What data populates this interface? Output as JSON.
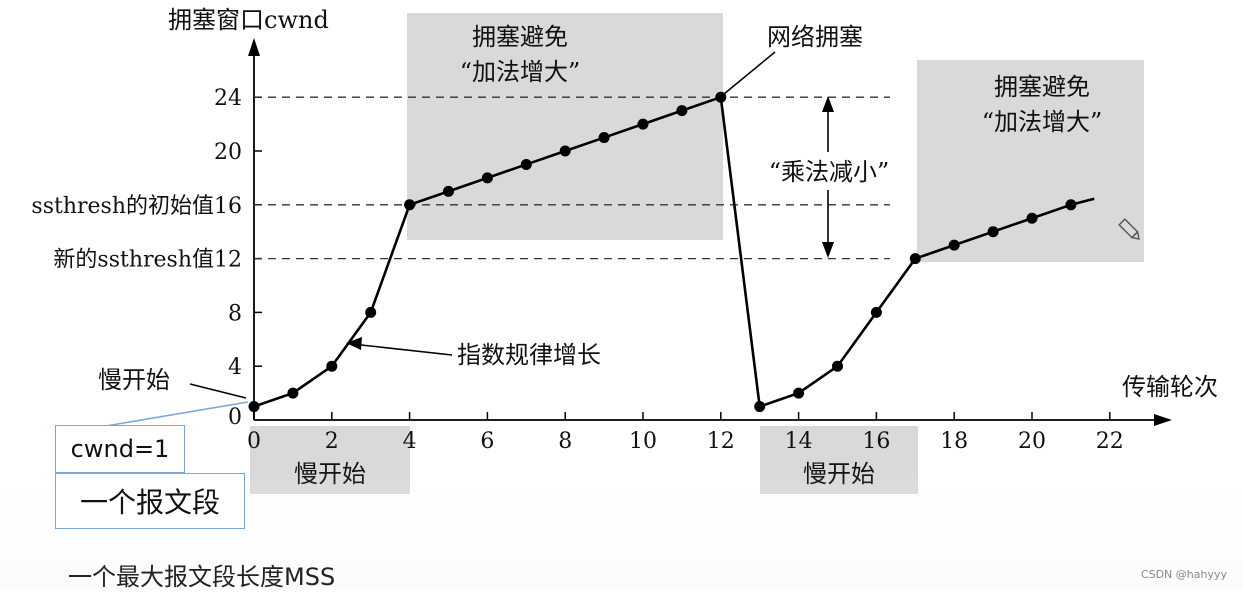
{
  "chart_data": {
    "type": "line",
    "ylabel": "拥塞窗口cwnd",
    "xlabel": "传输轮次",
    "x_ticks": [
      0,
      2,
      4,
      6,
      8,
      10,
      12,
      14,
      16,
      18,
      20,
      22
    ],
    "y_ticks": [
      0,
      4,
      8,
      12,
      16,
      20,
      24
    ],
    "xlim": [
      0,
      23
    ],
    "ylim": [
      0,
      26
    ],
    "series": [
      {
        "x": [
          0,
          1,
          2,
          3,
          4,
          5,
          6,
          7,
          8,
          9,
          10,
          11,
          12,
          13,
          14,
          15,
          16,
          17,
          18,
          19,
          20,
          21
        ],
        "y": [
          1,
          2,
          4,
          8,
          16,
          17,
          18,
          19,
          20,
          21,
          22,
          23,
          24,
          1,
          2,
          4,
          8,
          12,
          13,
          14,
          15,
          16
        ]
      }
    ],
    "threshold_lines": [
      {
        "y": 24,
        "label": ""
      },
      {
        "y": 16,
        "label": "ssthresh的初始值16"
      },
      {
        "y": 12,
        "label": "新的ssthresh值12"
      }
    ],
    "annotations": {
      "ca1": [
        "拥塞避免",
        "“加法增大”"
      ],
      "ca2": [
        "拥塞避免",
        "“加法增大”"
      ],
      "congestion": "网络拥塞",
      "multiplicative": "“乘法减小”",
      "exponential": "指数规律增长",
      "slow_start_label": "慢开始",
      "slow_start_box1": "慢开始",
      "slow_start_box2": "慢开始"
    }
  },
  "legend_boxes": {
    "cwnd": "cwnd=1",
    "segment": "一个报文段",
    "mss": "一个最大报文段长度MSS"
  },
  "watermark": "CSDN @hahyyy"
}
